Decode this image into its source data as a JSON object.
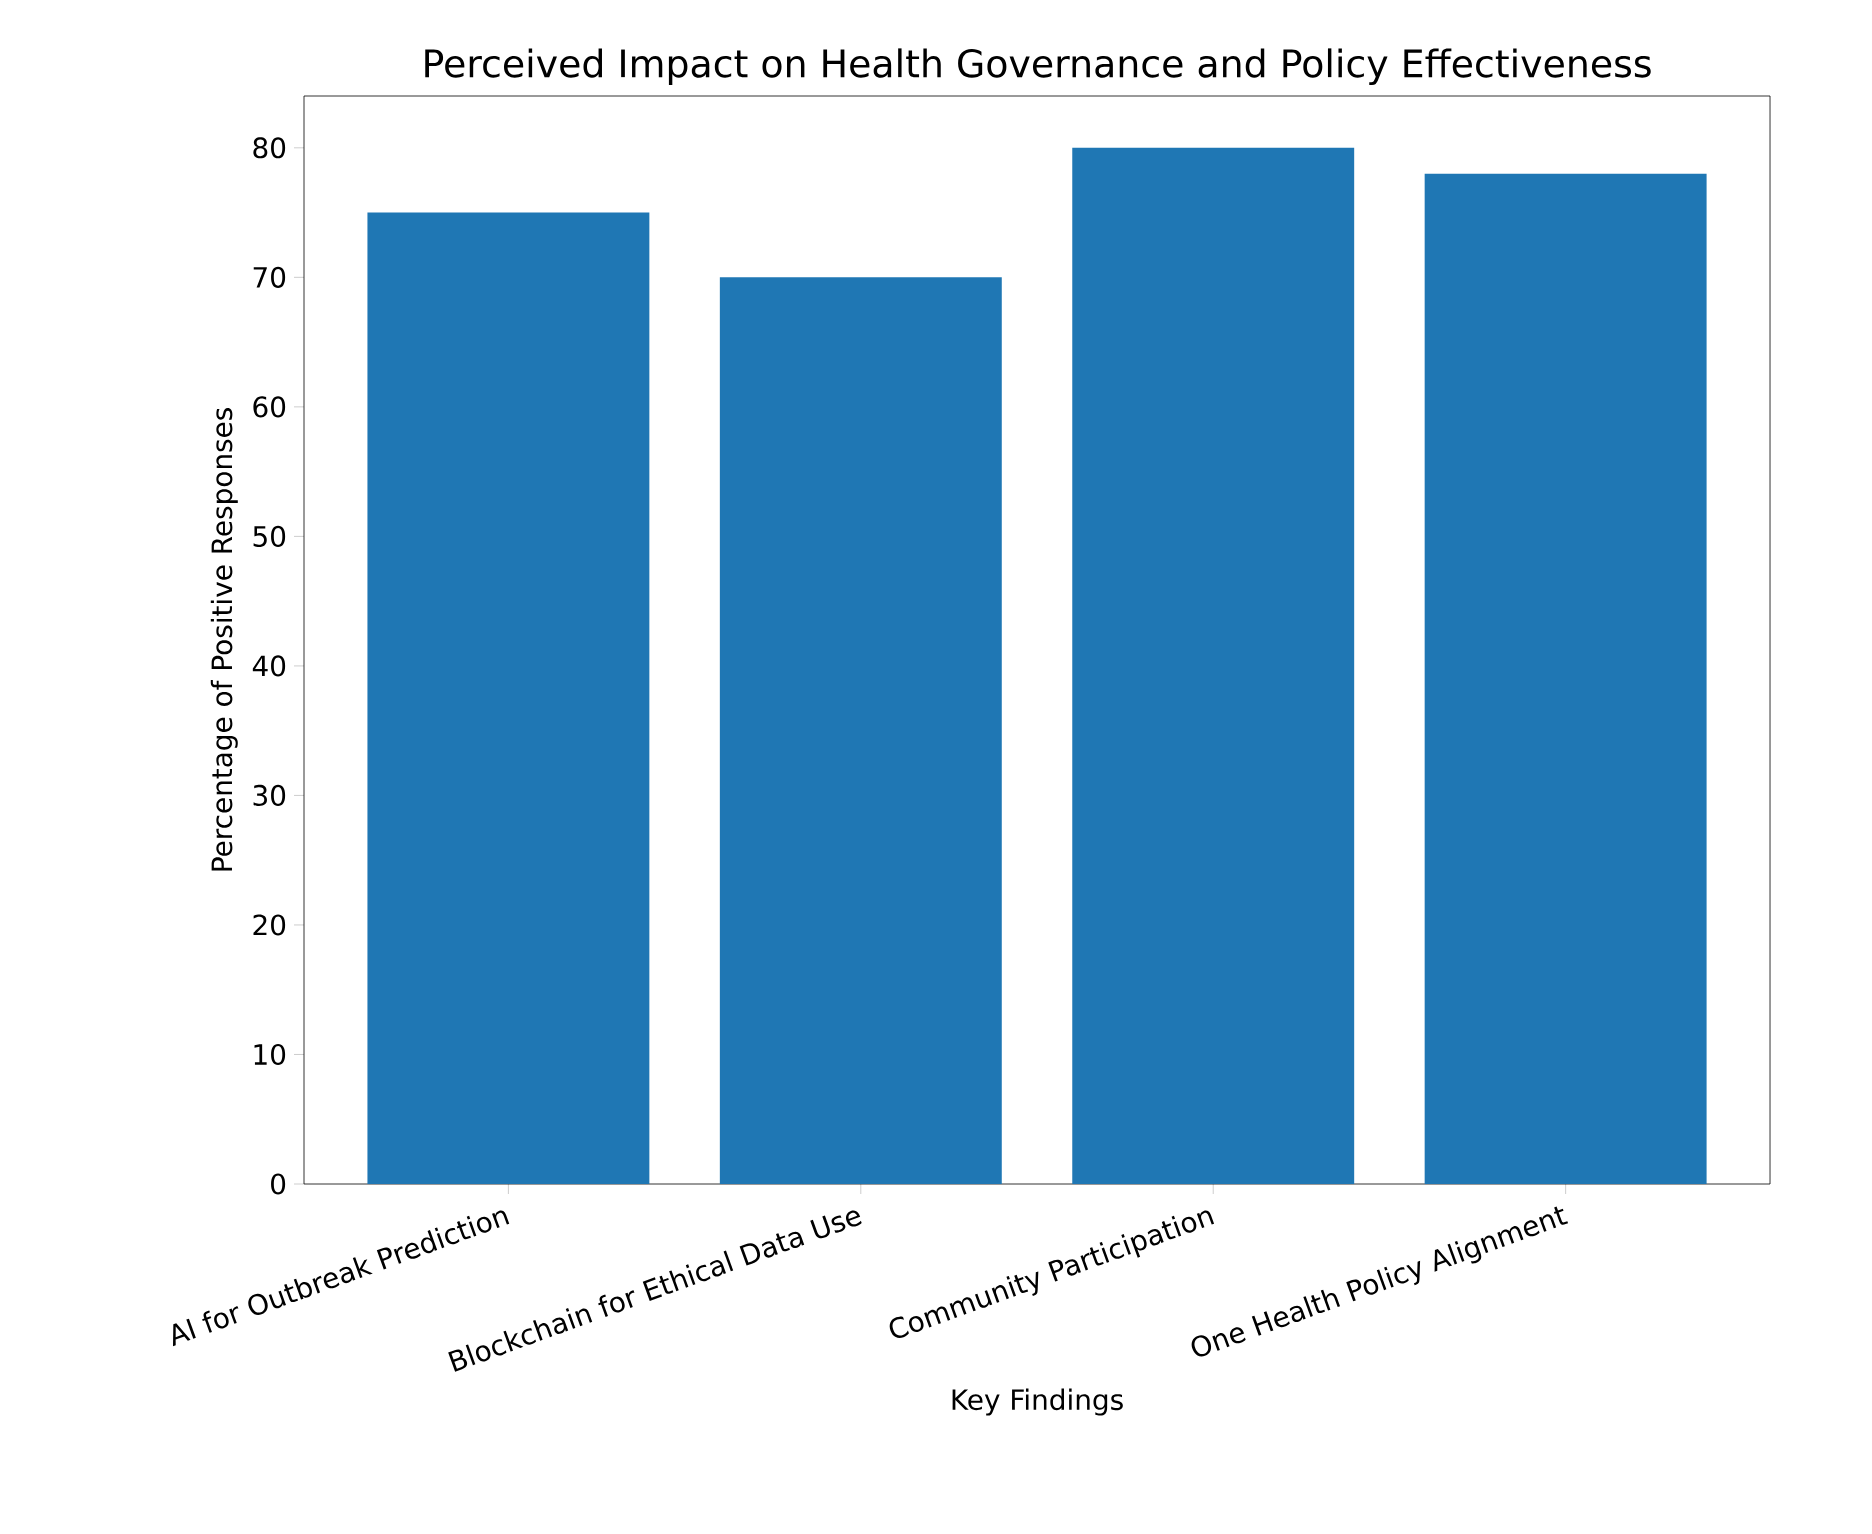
{
  "chart_data": {
    "type": "bar",
    "title": "Perceived Impact on Health Governance and Policy Effectiveness",
    "xlabel": "Key Findings",
    "ylabel": "Percentage of Positive Responses",
    "categories": [
      "AI for Outbreak Prediction",
      "Blockchain for Ethical Data Use",
      "Community Participation",
      "One Health Policy Alignment"
    ],
    "values": [
      75,
      70,
      80,
      78
    ],
    "color": "#1f77b4",
    "ylim": [
      0,
      84
    ],
    "yticks": [
      0,
      10,
      20,
      30,
      40,
      50,
      60,
      70,
      80
    ]
  }
}
